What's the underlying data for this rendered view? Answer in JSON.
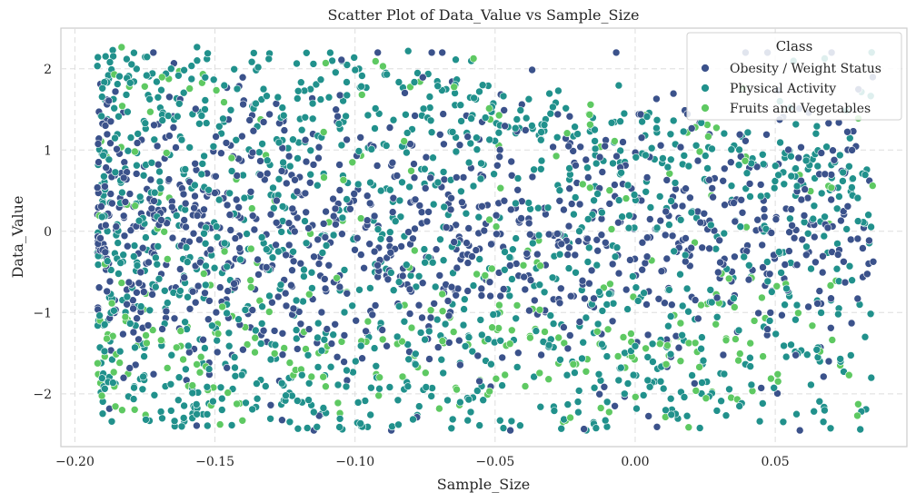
{
  "chart_data": {
    "type": "scatter",
    "title": "Scatter Plot of Data_Value vs Sample_Size",
    "xlabel": "Sample_Size",
    "ylabel": "Data_Value",
    "xlim": [
      -0.205,
      0.097
    ],
    "ylim": [
      -2.65,
      2.5
    ],
    "xticks": [
      -0.2,
      -0.15,
      -0.1,
      -0.05,
      0.0,
      0.05
    ],
    "xtick_labels": [
      "−0.20",
      "−0.15",
      "−0.10",
      "−0.05",
      "0.00",
      "0.05"
    ],
    "yticks": [
      -2,
      -1,
      0,
      1,
      2
    ],
    "ytick_labels": [
      "−2",
      "−1",
      "0",
      "1",
      "2"
    ],
    "grid": true,
    "legend": {
      "title": "Class",
      "placement": "top-right",
      "entries": [
        {
          "name": "Obesity / Weight Status",
          "color": "#3b528b"
        },
        {
          "name": "Physical Activity",
          "color": "#21918c"
        },
        {
          "name": "Fruits and Vegetables",
          "color": "#5ec962"
        }
      ]
    },
    "series": [
      {
        "name": "Obesity / Weight Status",
        "color": "#3b528b",
        "x_range": [
          -0.192,
          0.085
        ],
        "y_range": [
          -2.45,
          2.2
        ],
        "concentration": "dense in y between -1 and 1"
      },
      {
        "name": "Physical Activity",
        "color": "#21918c",
        "x_range": [
          -0.192,
          0.085
        ],
        "y_range": [
          -2.45,
          2.27
        ]
      },
      {
        "name": "Fruits and Vegetables",
        "color": "#5ec962",
        "x_range": [
          -0.192,
          0.085
        ],
        "y_range": [
          -2.45,
          2.27
        ],
        "concentration": "more frequent near y = -1.5"
      }
    ]
  }
}
